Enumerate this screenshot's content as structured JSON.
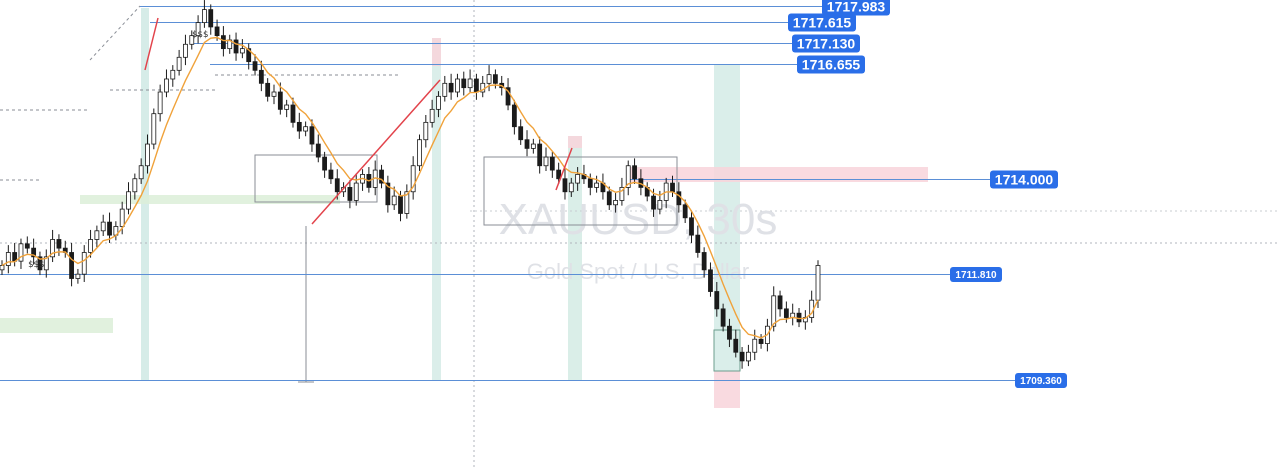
{
  "chart_data": {
    "type": "candlestick",
    "symbol": "XAUUSD, 30s",
    "description": "Gold Spot / U.S. Dollar",
    "liquidity_marks": [
      "$$$",
      "$$$"
    ],
    "price_levels": [
      {
        "label": "1717.983",
        "price": 1717.983,
        "style": "large"
      },
      {
        "label": "1717.615",
        "price": 1717.615,
        "style": "large"
      },
      {
        "label": "1717.130",
        "price": 1717.13,
        "style": "large"
      },
      {
        "label": "1716.655",
        "price": 1716.655,
        "style": "large"
      },
      {
        "label": "1714.000",
        "price": 1714.0,
        "style": "large"
      },
      {
        "label": "1711.810",
        "price": 1711.81,
        "style": "small"
      },
      {
        "label": "1709.360",
        "price": 1709.36,
        "style": "small"
      }
    ],
    "close_series": [
      1712.0,
      1712.3,
      1712.1,
      1712.5,
      1712.4,
      1712.2,
      1711.9,
      1712.2,
      1712.6,
      1712.4,
      1712.3,
      1711.7,
      1711.8,
      1712.3,
      1712.6,
      1712.8,
      1713.0,
      1712.7,
      1712.9,
      1713.3,
      1713.7,
      1714.0,
      1714.3,
      1714.8,
      1715.5,
      1716.0,
      1716.3,
      1716.5,
      1716.8,
      1717.1,
      1717.3,
      1717.6,
      1717.9,
      1717.5,
      1717.3,
      1717.0,
      1717.2,
      1716.9,
      1717.0,
      1716.7,
      1716.5,
      1716.2,
      1715.9,
      1716.0,
      1715.6,
      1715.7,
      1715.3,
      1715.1,
      1715.2,
      1714.8,
      1714.5,
      1714.2,
      1714.0,
      1713.7,
      1713.8,
      1713.5,
      1713.9,
      1714.1,
      1713.8,
      1714.2,
      1713.9,
      1713.4,
      1713.6,
      1713.2,
      1713.7,
      1714.3,
      1714.9,
      1715.3,
      1715.6,
      1715.9,
      1716.2,
      1716.0,
      1716.3,
      1716.1,
      1716.3,
      1716.0,
      1716.2,
      1716.4,
      1716.2,
      1716.1,
      1715.7,
      1715.2,
      1714.9,
      1714.7,
      1714.8,
      1714.3,
      1714.5,
      1714.2,
      1714.0,
      1713.7,
      1713.9,
      1714.1,
      1714.0,
      1713.8,
      1713.9,
      1713.7,
      1713.4,
      1713.5,
      1713.8,
      1714.3,
      1714.0,
      1713.8,
      1713.6,
      1713.3,
      1713.5,
      1713.9,
      1713.7,
      1713.4,
      1713.1,
      1712.7,
      1712.3,
      1711.9,
      1711.4,
      1711.0,
      1710.6,
      1710.3,
      1710.0,
      1709.8,
      1710.0,
      1710.3,
      1710.2,
      1710.6,
      1711.3,
      1711.0,
      1710.8,
      1710.9,
      1710.7,
      1710.8,
      1711.2,
      1712.0
    ],
    "ylim": [
      1708.8,
      1718.3
    ]
  }
}
